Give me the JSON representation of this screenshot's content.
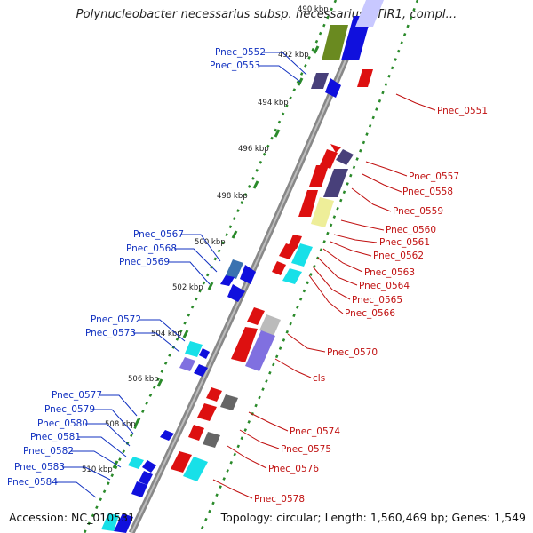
{
  "title": "Polynucleobacter necessarius subsp. necessarius STIR1, compl...",
  "footer": {
    "accession": "Accession: NC_010531",
    "summary": "Topology: circular; Length: 1,560,469 bp; Genes: 1,549"
  },
  "ticks": [
    {
      "label": "490 kbp"
    },
    {
      "label": "492 kbp"
    },
    {
      "label": "494 kbp"
    },
    {
      "label": "496 kbp"
    },
    {
      "label": "498 kbp"
    },
    {
      "label": "500 kbp"
    },
    {
      "label": "502 kbp"
    },
    {
      "label": "504 kbp"
    },
    {
      "label": "506 kbp"
    },
    {
      "label": "508 kbp"
    },
    {
      "label": "510 kbp"
    }
  ],
  "genes_left": [
    "Pnec_0552",
    "Pnec_0553",
    "Pnec_0567",
    "Pnec_0568",
    "Pnec_0569",
    "Pnec_0572",
    "Pnec_0573",
    "Pnec_0577",
    "Pnec_0579",
    "Pnec_0580",
    "Pnec_0581",
    "Pnec_0582",
    "Pnec_0583",
    "Pnec_0584"
  ],
  "genes_right": [
    "Pnec_0551",
    "Pnec_0557",
    "Pnec_0558",
    "Pnec_0559",
    "Pnec_0560",
    "Pnec_0561",
    "Pnec_0562",
    "Pnec_0563",
    "Pnec_0564",
    "Pnec_0565",
    "Pnec_0566",
    "Pnec_0570",
    "cls",
    "Pnec_0574",
    "Pnec_0575",
    "Pnec_0576",
    "Pnec_0578"
  ],
  "colors": {
    "forward": "#dd1010",
    "reverse": "#1010dd",
    "backbone": "#8a8a8a",
    "tick_track": "#2a8a2a",
    "cog_purple": "#48407a",
    "cog_cyan": "#18e0e8",
    "cog_gray": "#666666",
    "cog_yellow": "#eeee99",
    "cog_olive": "#6a8a20",
    "cog_lavender": "#8070e0",
    "cog_steel": "#3a72b0"
  }
}
